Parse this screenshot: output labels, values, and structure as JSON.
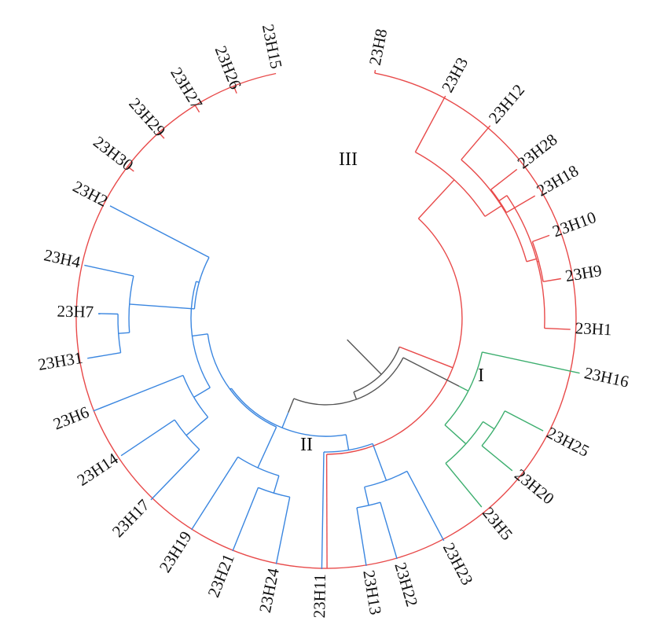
{
  "colors": {
    "root": "#555555",
    "cluster_I": "#3cae6e",
    "cluster_II": "#3a86e0",
    "cluster_III": "#e84a4a"
  },
  "clusters": [
    {
      "id": "I",
      "label": "I",
      "color": "#3cae6e"
    },
    {
      "id": "II",
      "label": "II",
      "color": "#3a86e0"
    },
    {
      "id": "III",
      "label": "III",
      "color": "#e84a4a"
    }
  ],
  "leaves": {
    "cluster_I": [
      "23H16",
      "23H25",
      "23H20",
      "23H5"
    ],
    "cluster_II": [
      "23H23",
      "23H22",
      "23H13",
      "23H11",
      "23H24",
      "23H21",
      "23H19",
      "23H17",
      "23H14",
      "23H6",
      "23H31",
      "23H7",
      "23H4",
      "23H2"
    ],
    "cluster_III": [
      "23H30",
      "23H29",
      "23H27",
      "23H26",
      "23H15",
      "23H8",
      "23H3",
      "23H12",
      "23H28",
      "23H18",
      "23H10",
      "23H9",
      "23H1"
    ]
  }
}
